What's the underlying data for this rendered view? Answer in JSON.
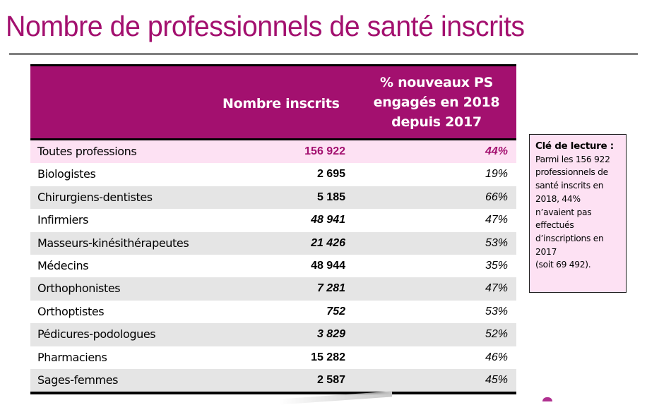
{
  "title": "Nombre de professionnels de santé inscrits",
  "table": {
    "headers": {
      "profession": "",
      "count": "Nombre inscrits",
      "pct": "% nouveaux PS\nengagés en 2018\ndepuis 2017"
    },
    "total": {
      "name": "Toutes professions",
      "count": "156 922",
      "pct": "44%"
    },
    "rows": [
      {
        "name": "Biologistes",
        "count": "2 695",
        "pct": "19%",
        "italic_count": false
      },
      {
        "name": "Chirurgiens-dentistes",
        "count": "5 185",
        "pct": "66%",
        "italic_count": false
      },
      {
        "name": "Infirmiers",
        "count": "48 941",
        "pct": "47%",
        "italic_count": true
      },
      {
        "name": "Masseurs-kinésithérapeutes",
        "count": "21 426",
        "pct": "53%",
        "italic_count": true
      },
      {
        "name": "Médecins",
        "count": "48 944",
        "pct": "35%",
        "italic_count": false
      },
      {
        "name": "Orthophonistes",
        "count": "7 281",
        "pct": "47%",
        "italic_count": true
      },
      {
        "name": "Orthoptistes",
        "count": "752",
        "pct": "53%",
        "italic_count": true
      },
      {
        "name": "Pédicures-podologues",
        "count": "3 829",
        "pct": "52%",
        "italic_count": true
      },
      {
        "name": "Pharmaciens",
        "count": "15 282",
        "pct": "46%",
        "italic_count": false
      },
      {
        "name": "Sages-femmes",
        "count": "2 587",
        "pct": "45%",
        "italic_count": false
      }
    ]
  },
  "note": {
    "title": "Clé de lecture :",
    "body": "Parmi les 156 922\nprofessionnels de\nsanté inscrits en\n2018, 44%\nn’avaient pas\neffectués\nd’inscriptions en\n2017\n(soit  69 492)."
  },
  "colors": {
    "accent": "#a3106f",
    "highlight_row": "#fde1f3",
    "shaded_row": "#e5e5e5",
    "rule": "#808080"
  }
}
